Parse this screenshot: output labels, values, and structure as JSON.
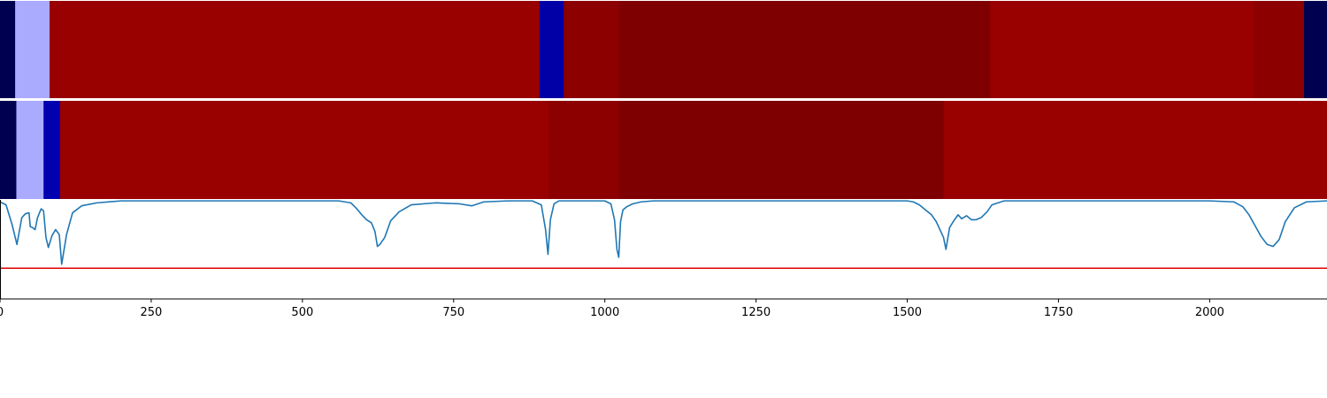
{
  "chart_data": [
    {
      "type": "heatmap",
      "segments": [
        {
          "start": 0,
          "end": 25,
          "color": "#000050"
        },
        {
          "start": 25,
          "end": 82,
          "color": "#aaaaff"
        },
        {
          "start": 82,
          "end": 892,
          "color": "#990000"
        },
        {
          "start": 892,
          "end": 932,
          "color": "#0000a6"
        },
        {
          "start": 932,
          "end": 1024,
          "color": "#8c0000"
        },
        {
          "start": 1024,
          "end": 1637,
          "color": "#7f0000"
        },
        {
          "start": 1637,
          "end": 2073,
          "color": "#990000"
        },
        {
          "start": 2073,
          "end": 2156,
          "color": "#8c0000"
        },
        {
          "start": 2156,
          "end": 2194,
          "color": "#000050"
        }
      ]
    },
    {
      "type": "heatmap",
      "segments": [
        {
          "start": 0,
          "end": 27,
          "color": "#000050"
        },
        {
          "start": 27,
          "end": 72,
          "color": "#aaaaff"
        },
        {
          "start": 72,
          "end": 99,
          "color": "#0000b0"
        },
        {
          "start": 99,
          "end": 907,
          "color": "#990000"
        },
        {
          "start": 907,
          "end": 1024,
          "color": "#8c0000"
        },
        {
          "start": 1024,
          "end": 1560,
          "color": "#7f0000"
        },
        {
          "start": 1560,
          "end": 2194,
          "color": "#990000"
        }
      ]
    },
    {
      "type": "line",
      "xlim": [
        0,
        2194
      ],
      "ylim": [
        0,
        1
      ],
      "x_ticks": [
        "0",
        "250",
        "500",
        "750",
        "1000",
        "1250",
        "1500",
        "1750",
        "2000"
      ],
      "line_color": "#1f77b4",
      "threshold": {
        "value": 0.31,
        "color": "#e00000"
      },
      "x": [
        0,
        10,
        20,
        28,
        36,
        42,
        48,
        50,
        54,
        58,
        62,
        68,
        72,
        76,
        80,
        86,
        92,
        98,
        102,
        110,
        120,
        135,
        160,
        200,
        300,
        450,
        560,
        580,
        590,
        598,
        606,
        614,
        620,
        624,
        628,
        636,
        646,
        660,
        680,
        720,
        760,
        780,
        800,
        840,
        880,
        895,
        902,
        906,
        910,
        916,
        924,
        960,
        1000,
        1010,
        1016,
        1020,
        1023,
        1026,
        1030,
        1036,
        1046,
        1060,
        1080,
        1120,
        1200,
        1300,
        1400,
        1500,
        1510,
        1520,
        1530,
        1540,
        1548,
        1554,
        1560,
        1564,
        1570,
        1576,
        1584,
        1590,
        1598,
        1606,
        1614,
        1622,
        1632,
        1640,
        1660,
        1700,
        1800,
        1900,
        2000,
        2040,
        2055,
        2065,
        2075,
        2085,
        2095,
        2105,
        2115,
        2125,
        2140,
        2160,
        2194
      ],
      "y": [
        0.98,
        0.95,
        0.75,
        0.55,
        0.82,
        0.86,
        0.87,
        0.73,
        0.72,
        0.7,
        0.82,
        0.91,
        0.89,
        0.62,
        0.52,
        0.64,
        0.7,
        0.65,
        0.35,
        0.65,
        0.87,
        0.94,
        0.97,
        0.99,
        0.99,
        0.99,
        0.99,
        0.97,
        0.91,
        0.85,
        0.8,
        0.77,
        0.68,
        0.53,
        0.55,
        0.62,
        0.79,
        0.88,
        0.95,
        0.97,
        0.96,
        0.94,
        0.98,
        0.99,
        0.99,
        0.95,
        0.7,
        0.45,
        0.8,
        0.96,
        0.99,
        0.99,
        0.99,
        0.96,
        0.8,
        0.5,
        0.42,
        0.78,
        0.9,
        0.93,
        0.96,
        0.98,
        0.99,
        0.99,
        0.99,
        0.99,
        0.99,
        0.99,
        0.98,
        0.95,
        0.9,
        0.85,
        0.78,
        0.7,
        0.62,
        0.5,
        0.72,
        0.78,
        0.85,
        0.81,
        0.84,
        0.8,
        0.8,
        0.82,
        0.88,
        0.95,
        0.99,
        0.99,
        0.99,
        0.99,
        0.99,
        0.98,
        0.93,
        0.85,
        0.74,
        0.63,
        0.55,
        0.53,
        0.6,
        0.78,
        0.92,
        0.98,
        0.99
      ]
    }
  ]
}
